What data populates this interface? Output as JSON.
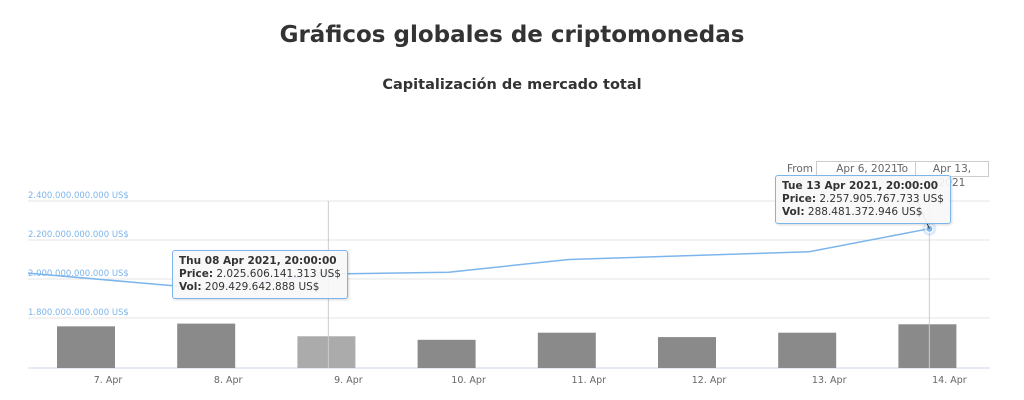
{
  "page": {
    "title": "Gráficos globales de criptomonedas",
    "chart_title": "Capitalización de mercado total"
  },
  "range_selector": {
    "from_label": "From",
    "from_value": "Apr 6, 2021",
    "to_label": "To",
    "to_value": "Apr 13, 2021"
  },
  "tooltips": [
    {
      "header": "Thu 08 Apr 2021, 20:00:00",
      "price_label": "Price:",
      "price_value": "2.025.606.141.313 US$",
      "vol_label": "Vol:",
      "vol_value": "209.429.642.888 US$"
    },
    {
      "header": "Tue 13 Apr 2021, 20:00:00",
      "price_label": "Price:",
      "price_value": "2.257.905.767.733 US$",
      "vol_label": "Vol:",
      "vol_value": "288.481.372.946 US$"
    }
  ],
  "colors": {
    "line": "#7cb5ec",
    "bar": "#8a8a8a",
    "bar_highlight": "#ababab",
    "grid": "#e6e6e6"
  },
  "chart_data": {
    "type": "line",
    "title": "Capitalización de mercado total",
    "categories": [
      "7. Apr",
      "8. Apr",
      "9. Apr",
      "10. Apr",
      "11. Apr",
      "12. Apr",
      "13. Apr",
      "14. Apr"
    ],
    "ylim": [
      1800000000000,
      2400000000000
    ],
    "y_ticks": [
      1800000000000,
      2000000000000,
      2200000000000,
      2400000000000
    ],
    "y_tick_labels": [
      "1.800.000.000.000 US$",
      "2.000.000.000.000 US$",
      "2.200.000.000.000 US$",
      "2.400.000.000.000 US$"
    ],
    "grid": true,
    "price_points": [
      {
        "date": "2021-04-06",
        "value": 2030000000000
      },
      {
        "date": "2021-04-07",
        "value": 1950000000000
      },
      {
        "date": "2021-04-08",
        "value": 2025606141313
      },
      {
        "date": "2021-04-09",
        "value": 2035000000000
      },
      {
        "date": "2021-04-10",
        "value": 2100000000000
      },
      {
        "date": "2021-04-11",
        "value": 2120000000000
      },
      {
        "date": "2021-04-12",
        "value": 2140000000000
      },
      {
        "date": "2021-04-13",
        "value": 2257905767733
      }
    ],
    "volume": {
      "categories": [
        "7. Apr",
        "8. Apr",
        "9. Apr",
        "10. Apr",
        "11. Apr",
        "12. Apr",
        "13. Apr",
        "14. Apr"
      ],
      "values": [
        275000000000,
        293000000000,
        209429642888,
        186000000000,
        233000000000,
        204000000000,
        233000000000,
        288481372946
      ]
    }
  }
}
